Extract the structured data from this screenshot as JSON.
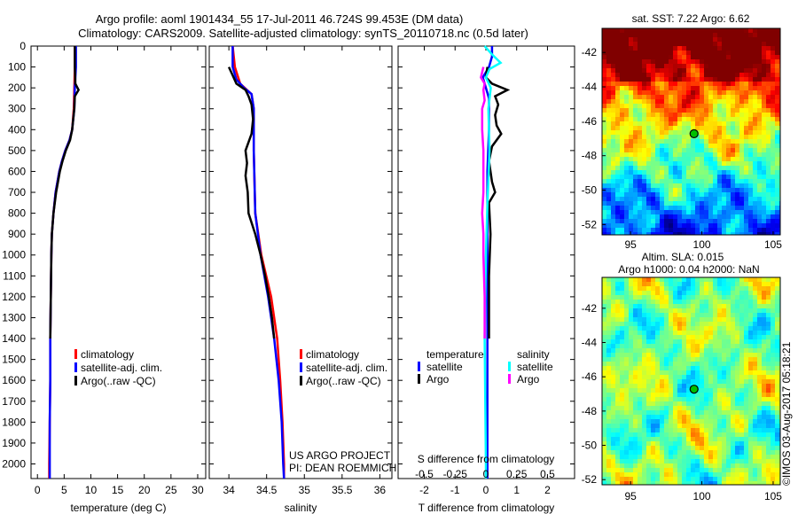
{
  "title": {
    "line1": "Argo profile: aoml 1901434_55 17-Jul-2011 46.724S 99.453E (DM data)",
    "line2": "Climatology: CARS2009. Satellite-adjusted climatology: synTS_20110718.nc (0.5d later)"
  },
  "credit": {
    "project": "US ARGO PROJECT",
    "pi": "PI: DEAN ROEMMICH",
    "copyright": "©IMOS 03-Aug-2017 05:18:21"
  },
  "colors": {
    "climatology": "#ff0000",
    "satellite": "#0000ff",
    "argo": "#000000",
    "s_satellite": "#00ffff",
    "s_argo": "#ff00ff"
  },
  "chart_data": [
    {
      "type": "line",
      "name": "temperature",
      "xlabel": "temperature (deg C)",
      "ylabel": "",
      "xlim": [
        -1.2,
        31.5
      ],
      "ylim": [
        0,
        2070
      ],
      "y_reversed": true,
      "xticks": [
        "0",
        "5",
        "10",
        "15",
        "20",
        "25",
        "30"
      ],
      "xtick_values": [
        0,
        5,
        10,
        15,
        20,
        25,
        30
      ],
      "yticks": [
        "0",
        "100",
        "200",
        "300",
        "400",
        "500",
        "600",
        "700",
        "800",
        "900",
        "1000",
        "1100",
        "1200",
        "1300",
        "1400",
        "1500",
        "1600",
        "1700",
        "1800",
        "1900",
        "2000"
      ],
      "legend": [
        "climatology",
        "satellite-adj. clim.",
        "Argo(..raw -QC)"
      ],
      "series": [
        {
          "name": "climatology",
          "color": "#ff0000",
          "depth": [
            0,
            100,
            200,
            300,
            400,
            450,
            500,
            550,
            600,
            700,
            800,
            900,
            1000,
            1200,
            1400,
            1600,
            1800,
            2000,
            2070
          ],
          "values": [
            7.0,
            7.0,
            6.9,
            6.8,
            6.5,
            6.0,
            5.2,
            4.6,
            4.1,
            3.4,
            3.0,
            2.7,
            2.6,
            2.5,
            2.4,
            2.4,
            2.3,
            2.2,
            2.2
          ]
        },
        {
          "name": "satellite-adj. clim.",
          "color": "#0000ff",
          "depth": [
            0,
            100,
            200,
            300,
            400,
            450,
            500,
            550,
            600,
            700,
            800,
            900,
            1000,
            1200,
            1400,
            1600,
            1800,
            2000,
            2070
          ],
          "values": [
            7.2,
            7.2,
            7.0,
            6.9,
            6.5,
            6.0,
            5.2,
            4.6,
            4.1,
            3.4,
            3.0,
            2.7,
            2.6,
            2.5,
            2.4,
            2.4,
            2.3,
            2.3,
            2.3
          ]
        },
        {
          "name": "Argo",
          "color": "#000000",
          "depth": [
            0,
            100,
            180,
            210,
            240,
            300,
            400,
            450,
            500,
            550,
            600,
            700,
            800,
            900,
            1000,
            1200,
            1400
          ],
          "values": [
            7.0,
            7.0,
            7.1,
            7.7,
            7.0,
            6.9,
            6.5,
            6.1,
            5.3,
            4.7,
            4.2,
            3.5,
            3.0,
            2.7,
            2.6,
            2.5,
            2.4
          ]
        }
      ]
    },
    {
      "type": "line",
      "name": "salinity",
      "xlabel": "salinity",
      "ylabel": "",
      "xlim": [
        33.74,
        36.16
      ],
      "ylim": [
        0,
        2070
      ],
      "y_reversed": true,
      "xticks": [
        "34",
        "34.5",
        "35",
        "35.5",
        "36"
      ],
      "xtick_values": [
        34,
        34.5,
        35,
        35.5,
        36
      ],
      "legend": [
        "climatology",
        "satellite-adj. clim.",
        "Argo(..raw -QC)"
      ],
      "series": [
        {
          "name": "climatology",
          "color": "#ff0000",
          "depth": [
            0,
            100,
            180,
            230,
            300,
            500,
            800,
            1000,
            1200,
            1400,
            1600,
            1800,
            2000,
            2070
          ],
          "values": [
            34.05,
            34.08,
            34.15,
            34.3,
            34.33,
            34.33,
            34.35,
            34.43,
            34.56,
            34.64,
            34.68,
            34.71,
            34.73,
            34.73
          ]
        },
        {
          "name": "satellite-adj. clim.",
          "color": "#0000ff",
          "depth": [
            0,
            100,
            160,
            200,
            230,
            300,
            500,
            800,
            1000,
            1200,
            1400,
            1600,
            1800,
            2000,
            2070
          ],
          "values": [
            34.05,
            34.05,
            34.1,
            34.2,
            34.3,
            34.33,
            34.33,
            34.35,
            34.42,
            34.52,
            34.6,
            34.66,
            34.7,
            34.72,
            34.73
          ]
        },
        {
          "name": "Argo",
          "color": "#000000",
          "depth": [
            100,
            140,
            180,
            210,
            240,
            280,
            350,
            420,
            500,
            560,
            620,
            700,
            800,
            900,
            1000,
            1100,
            1200,
            1300,
            1400
          ],
          "values": [
            34.0,
            34.05,
            34.1,
            34.22,
            34.26,
            34.3,
            34.32,
            34.3,
            34.22,
            34.24,
            34.22,
            34.25,
            34.26,
            34.35,
            34.42,
            34.48,
            34.53,
            34.57,
            34.6
          ]
        }
      ]
    },
    {
      "type": "line",
      "name": "difference",
      "xlabel": "T difference from climatology",
      "x2label": "S difference from climatology",
      "xlim": [
        -2.85,
        2.88
      ],
      "ylim": [
        0,
        2070
      ],
      "y_reversed": true,
      "xticks": [
        "-2",
        "-1",
        "0",
        "1",
        "2"
      ],
      "xtick_values": [
        -2,
        -1,
        0,
        1,
        2
      ],
      "x2ticks": [
        "-0.5",
        "-0.25",
        "0",
        "0.25",
        "0.5"
      ],
      "x2tick_values": [
        -0.5,
        -0.25,
        0,
        0.25,
        0.5
      ],
      "legend": {
        "temperature_title": "temperature",
        "salinity_title": "salinity",
        "t_satellite": "satellite",
        "t_argo": "Argo",
        "s_satellite": "satellite",
        "s_argo": "Argo"
      },
      "series": [
        {
          "name": "T satellite",
          "axis": "T",
          "color": "#0000ff",
          "depth": [
            0,
            50,
            100,
            150,
            200,
            250,
            300,
            400,
            600,
            800,
            1000,
            1400,
            2000,
            2070
          ],
          "values": [
            0.2,
            0.2,
            0.1,
            -0.1,
            0.0,
            0.1,
            0.1,
            0.1,
            0.05,
            0.05,
            0.05,
            0.05,
            0.05,
            0.05
          ]
        },
        {
          "name": "T Argo",
          "axis": "T",
          "color": "#000000",
          "depth": [
            100,
            150,
            180,
            210,
            240,
            280,
            330,
            380,
            420,
            480,
            550,
            650,
            700,
            750,
            900,
            1100,
            1400
          ],
          "values": [
            0.05,
            0.0,
            0.2,
            0.7,
            0.3,
            0.4,
            0.3,
            0.35,
            0.5,
            0.2,
            0.1,
            0.2,
            0.3,
            0.1,
            0.15,
            0.1,
            0.1
          ]
        },
        {
          "name": "S satellite",
          "axis": "S",
          "color": "#00ffff",
          "depth": [
            0,
            40,
            80,
            110,
            150,
            200,
            300,
            500,
            800,
            1000,
            1400,
            2000,
            2070
          ],
          "values": [
            -0.01,
            0.05,
            0.12,
            0.03,
            0.0,
            0.04,
            0.02,
            0.03,
            0.01,
            0.0,
            -0.01,
            0.0,
            0.0
          ]
        },
        {
          "name": "S Argo",
          "axis": "S",
          "color": "#ff00ff",
          "depth": [
            100,
            150,
            180,
            210,
            260,
            300,
            400,
            500,
            600,
            700,
            800,
            900,
            1000,
            1200,
            1400
          ],
          "values": [
            -0.02,
            -0.04,
            -0.01,
            -0.02,
            -0.01,
            -0.03,
            -0.03,
            -0.02,
            -0.02,
            -0.02,
            -0.03,
            -0.02,
            -0.02,
            -0.01,
            -0.01
          ]
        }
      ]
    },
    {
      "type": "heatmap",
      "name": "sst-map",
      "title": "sat. SST: 7.22 Argo: 6.62",
      "xlim": [
        93.0,
        105.5
      ],
      "ylim": [
        -52.6,
        -40.6
      ],
      "xticks": [
        "95",
        "100",
        "105"
      ],
      "xtick_values": [
        95,
        100,
        105
      ],
      "yticks": [
        "-42",
        "-44",
        "-46",
        "-48",
        "-50",
        "-52"
      ],
      "ytick_values": [
        -42,
        -44,
        -46,
        -48,
        -50,
        -52
      ],
      "marker": {
        "lon": 99.453,
        "lat": -46.724,
        "color": "#00c000"
      },
      "colormap": "jet"
    },
    {
      "type": "heatmap",
      "name": "sla-map",
      "title": "Altim. SLA: 0.015",
      "subtitle": "Argo h1000: 0.04 h2000: NaN",
      "xlim": [
        93.0,
        105.5
      ],
      "ylim": [
        -52.3,
        -40.2
      ],
      "xticks": [
        "95",
        "100",
        "105"
      ],
      "xtick_values": [
        95,
        100,
        105
      ],
      "yticks": [
        "-42",
        "-44",
        "-46",
        "-48",
        "-50",
        "-52"
      ],
      "ytick_values": [
        -42,
        -44,
        -46,
        -48,
        -50,
        -52
      ],
      "marker": {
        "lon": 99.453,
        "lat": -46.724,
        "color": "#00c000"
      },
      "colormap": "jet"
    }
  ]
}
